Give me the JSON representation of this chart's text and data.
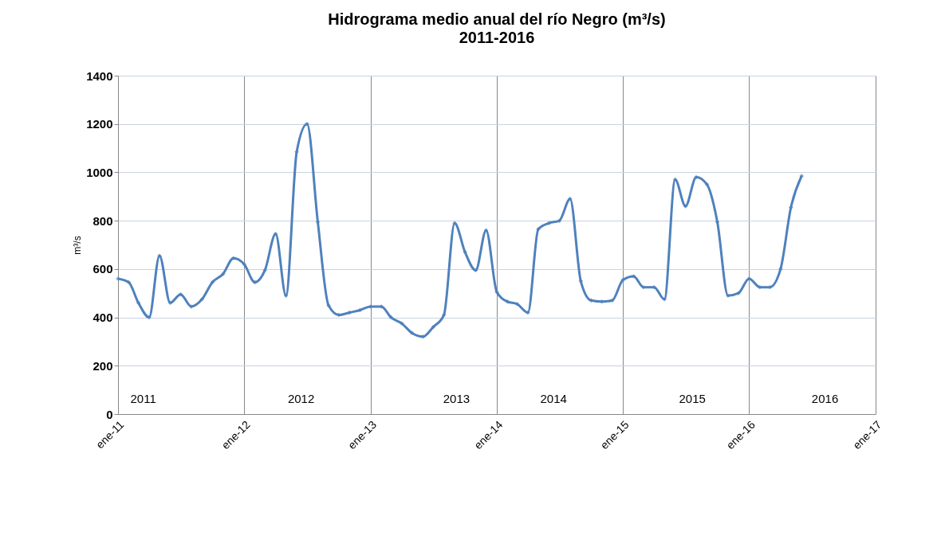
{
  "chart_data": {
    "type": "line",
    "title": "Hidrograma medio anual del río Negro (m³/s)",
    "subtitle": "2011-2016",
    "ylabel": "m³/s",
    "x": [
      "2011-01",
      "2011-02",
      "2011-03",
      "2011-04",
      "2011-05",
      "2011-06",
      "2011-07",
      "2011-08",
      "2011-09",
      "2011-10",
      "2011-11",
      "2011-12",
      "2012-01",
      "2012-02",
      "2012-03",
      "2012-04",
      "2012-05",
      "2012-06",
      "2012-07",
      "2012-08",
      "2012-09",
      "2012-10",
      "2012-11",
      "2012-12",
      "2013-01",
      "2013-02",
      "2013-03",
      "2013-04",
      "2013-05",
      "2013-06",
      "2013-07",
      "2013-08",
      "2013-09",
      "2013-10",
      "2013-11",
      "2013-12",
      "2014-01",
      "2014-02",
      "2014-03",
      "2014-04",
      "2014-05",
      "2014-06",
      "2014-07",
      "2014-08",
      "2014-09",
      "2014-10",
      "2014-11",
      "2014-12",
      "2015-01",
      "2015-02",
      "2015-03",
      "2015-04",
      "2015-05",
      "2015-06",
      "2015-07",
      "2015-08",
      "2015-09",
      "2015-10",
      "2015-11",
      "2015-12",
      "2016-01",
      "2016-02",
      "2016-03",
      "2016-04",
      "2016-05",
      "2016-06"
    ],
    "series": [
      {
        "color": "#4f81bd",
        "values": [
          560,
          545,
          460,
          400,
          655,
          460,
          495,
          445,
          475,
          545,
          580,
          645,
          620,
          545,
          595,
          745,
          490,
          1085,
          1200,
          795,
          450,
          410,
          420,
          430,
          445,
          445,
          400,
          375,
          335,
          320,
          360,
          410,
          790,
          670,
          595,
          760,
          505,
          465,
          455,
          420,
          765,
          790,
          800,
          890,
          550,
          470,
          465,
          470,
          555,
          570,
          525,
          525,
          475,
          970,
          860,
          980,
          950,
          795,
          490,
          500,
          560,
          525,
          525,
          600,
          855,
          985
        ]
      }
    ],
    "xlim": [
      "2011-01",
      "2017-01"
    ],
    "xticks": [
      {
        "value": "2011-01",
        "label": "ene-11"
      },
      {
        "value": "2012-01",
        "label": "ene-12"
      },
      {
        "value": "2013-01",
        "label": "ene-13"
      },
      {
        "value": "2014-01",
        "label": "ene-14"
      },
      {
        "value": "2015-01",
        "label": "ene-15"
      },
      {
        "value": "2016-01",
        "label": "ene-16"
      },
      {
        "value": "2017-01",
        "label": "ene-17"
      }
    ],
    "ylim": [
      0,
      1400
    ],
    "yticks": [
      0,
      200,
      400,
      600,
      800,
      1000,
      1200,
      1400
    ],
    "grid": true,
    "marker": "diamond",
    "line_style": "solid",
    "annotations": [
      "2011",
      "2012",
      "2013",
      "2014",
      "2015",
      "2016"
    ]
  }
}
